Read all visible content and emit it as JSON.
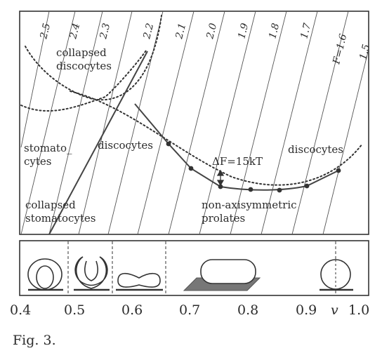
{
  "isolines": [
    "2.5",
    "2.4",
    "2.3",
    "2.2",
    "2.1",
    "2.0",
    "1.9",
    "1.8",
    "1.7",
    "F=1.6",
    "1.5"
  ],
  "labels": {
    "collapsed_discocytes": [
      "collapsed",
      "discocytes"
    ],
    "stomatocytes": [
      "stomato_",
      "cytes"
    ],
    "discocytes_mid": "discocytes",
    "delta_f": "ΔF=15kT",
    "discocytes_right": "discocytes",
    "collapsed_stomatocytes": [
      "collapsed",
      "stomatocytes"
    ],
    "prolates": [
      "non-axisymmetric",
      "prolates"
    ]
  },
  "x_axis": {
    "ticks": [
      "0.4",
      "0.5",
      "0.6",
      "0.7",
      "0.8",
      "0.9",
      "1.0"
    ],
    "variable": "v"
  },
  "caption": "Fig. 3."
}
